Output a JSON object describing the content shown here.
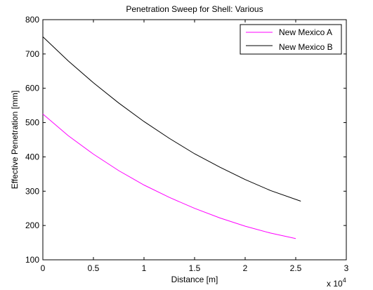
{
  "chart_data": {
    "type": "line",
    "title": "Penetration Sweep for Shell: Various",
    "xlabel": "Distance [m]",
    "ylabel": "Effective Penetration [mm]",
    "x_multiplier_label": "x 10",
    "x_multiplier_exponent": "4",
    "xlim": [
      0,
      30000
    ],
    "ylim": [
      100,
      800
    ],
    "x_ticks": [
      0,
      5000,
      10000,
      15000,
      20000,
      25000,
      30000
    ],
    "x_tick_labels": [
      "0",
      "0.5",
      "1",
      "1.5",
      "2",
      "2.5",
      "3"
    ],
    "y_ticks": [
      100,
      200,
      300,
      400,
      500,
      600,
      700,
      800
    ],
    "y_tick_labels": [
      "100",
      "200",
      "300",
      "400",
      "500",
      "600",
      "700",
      "800"
    ],
    "grid": false,
    "legend_position": "top-right",
    "series": [
      {
        "name": "New Mexico A",
        "color": "#ff00ff",
        "x": [
          0,
          2500,
          5000,
          7500,
          10000,
          12500,
          15000,
          17500,
          20000,
          22500,
          25000
        ],
        "y": [
          525,
          462,
          408,
          360,
          318,
          282,
          250,
          222,
          198,
          178,
          162
        ]
      },
      {
        "name": "New Mexico B",
        "color": "#000000",
        "x": [
          0,
          2500,
          5000,
          7500,
          10000,
          12500,
          15000,
          17500,
          20000,
          22500,
          25500
        ],
        "y": [
          750,
          680,
          616,
          557,
          503,
          454,
          409,
          370,
          334,
          302,
          271
        ]
      }
    ]
  }
}
